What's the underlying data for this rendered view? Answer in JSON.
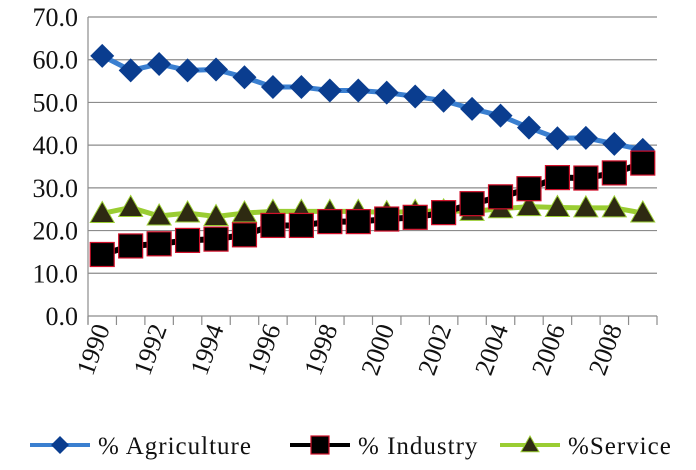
{
  "chart_data": {
    "type": "line",
    "title": "",
    "xlabel": "",
    "ylabel": "",
    "ylim": [
      0,
      70
    ],
    "yticks": [
      "0.0",
      "10.0",
      "20.0",
      "30.0",
      "40.0",
      "50.0",
      "60.0",
      "70.0"
    ],
    "x": [
      1990,
      1991,
      1992,
      1993,
      1994,
      1995,
      1996,
      1997,
      1998,
      1999,
      2000,
      2001,
      2002,
      2003,
      2004,
      2005,
      2006,
      2007,
      2008,
      2009
    ],
    "xtick_labels": [
      "1990",
      "1992",
      "1994",
      "1996",
      "1998",
      "2000",
      "2002",
      "2004",
      "2006",
      "2008"
    ],
    "grid": "horizontal",
    "legend_position": "bottom",
    "series": [
      {
        "name": "% Agriculture",
        "color": "#0a3d8f",
        "line_color": "#3a7fd0",
        "marker": "diamond",
        "values": [
          60.9,
          57.5,
          59.0,
          57.5,
          57.7,
          55.9,
          53.6,
          53.6,
          52.8,
          52.8,
          52.3,
          51.4,
          50.4,
          48.5,
          46.9,
          44.1,
          41.6,
          41.7,
          40.3,
          38.9
        ]
      },
      {
        "name": "% Industry",
        "color": "#000000",
        "line_color": "#000000",
        "marker_edge": "#d0102a",
        "marker": "square",
        "values": [
          14.4,
          16.4,
          16.9,
          17.7,
          18.0,
          19.0,
          21.2,
          21.2,
          22.1,
          22.1,
          22.7,
          23.1,
          24.2,
          26.3,
          27.9,
          29.8,
          32.4,
          32.3,
          33.5,
          35.8
        ]
      },
      {
        "name": "%Service",
        "color": "#2e2a12",
        "line_color": "#9acd32",
        "marker": "triangle",
        "values": [
          24.0,
          25.4,
          23.4,
          24.1,
          23.3,
          24.1,
          24.5,
          24.5,
          24.5,
          24.5,
          24.2,
          24.5,
          24.6,
          24.5,
          25.1,
          25.6,
          25.4,
          25.3,
          25.3,
          24.1
        ]
      }
    ]
  }
}
